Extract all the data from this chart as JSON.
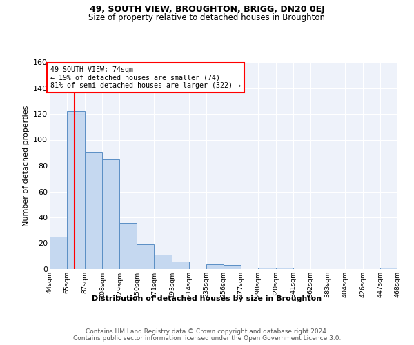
{
  "title1": "49, SOUTH VIEW, BROUGHTON, BRIGG, DN20 0EJ",
  "title2": "Size of property relative to detached houses in Broughton",
  "xlabel": "Distribution of detached houses by size in Broughton",
  "ylabel": "Number of detached properties",
  "bin_labels": [
    "44sqm",
    "65sqm",
    "87sqm",
    "108sqm",
    "129sqm",
    "150sqm",
    "171sqm",
    "193sqm",
    "214sqm",
    "235sqm",
    "256sqm",
    "277sqm",
    "298sqm",
    "320sqm",
    "341sqm",
    "362sqm",
    "383sqm",
    "404sqm",
    "426sqm",
    "447sqm",
    "468sqm"
  ],
  "bin_edges": [
    44,
    65,
    87,
    108,
    129,
    150,
    171,
    193,
    214,
    235,
    256,
    277,
    298,
    320,
    341,
    362,
    383,
    404,
    426,
    447,
    468
  ],
  "bar_heights": [
    25,
    122,
    90,
    85,
    36,
    19,
    11,
    6,
    0,
    4,
    3,
    0,
    1,
    1,
    0,
    0,
    0,
    0,
    0,
    1,
    0
  ],
  "bar_color": "#c5d8f0",
  "bar_edge_color": "#5b8fc5",
  "red_line_x": 74,
  "ylim": [
    0,
    160
  ],
  "yticks": [
    0,
    20,
    40,
    60,
    80,
    100,
    120,
    140,
    160
  ],
  "annotation_title": "49 SOUTH VIEW: 74sqm",
  "annotation_line1": "← 19% of detached houses are smaller (74)",
  "annotation_line2": "81% of semi-detached houses are larger (322) →",
  "footer1": "Contains HM Land Registry data © Crown copyright and database right 2024.",
  "footer2": "Contains public sector information licensed under the Open Government Licence 3.0.",
  "background_color": "#eef2fa"
}
